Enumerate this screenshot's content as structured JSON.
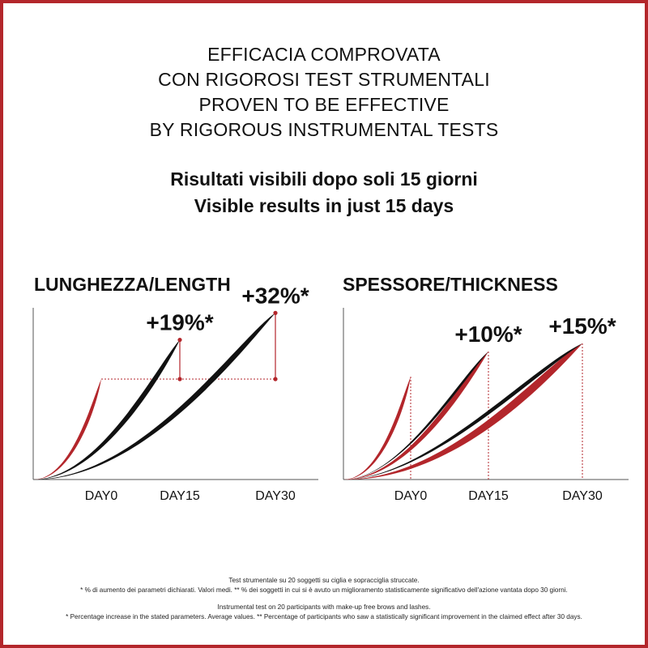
{
  "headline": {
    "line1": "EFFICACIA COMPROVATA",
    "line2": "CON RIGOROSI TEST STRUMENTALI",
    "line3": "PROVEN TO BE EFFECTIVE",
    "line4": "BY RIGOROUS INSTRUMENTAL TESTS"
  },
  "subheadline": {
    "line1": "Risultati visibili dopo soli 15 giorni",
    "line2": "Visible results in just 15 days"
  },
  "colors": {
    "red": "#b3262b",
    "black": "#111111",
    "frame": "#b3262b"
  },
  "chart_data": [
    {
      "type": "line",
      "title": "LUNGHEZZA/LENGTH",
      "categories": [
        "DAY0",
        "DAY15",
        "DAY30"
      ],
      "baseline_level": 1.0,
      "series": [
        {
          "color": "#b3262b",
          "end_day": "DAY0",
          "end_value": 1.0
        },
        {
          "color": "#111111",
          "end_day": "DAY15",
          "end_value": 1.19,
          "label": "+19%*"
        },
        {
          "color": "#111111",
          "end_day": "DAY30",
          "end_value": 1.32,
          "label": "+32%*"
        }
      ],
      "grid": false
    },
    {
      "type": "line",
      "title": "SPESSORE/THICKNESS",
      "categories": [
        "DAY0",
        "DAY15",
        "DAY30"
      ],
      "series": [
        {
          "color": "#b3262b",
          "end_day": "DAY0",
          "end_value": 1.0
        },
        {
          "color": "#b3262b",
          "end_day": "DAY15",
          "end_value": 1.1,
          "label": "+10%*"
        },
        {
          "color": "#111111",
          "end_day": "DAY30",
          "end_value": 1.15,
          "label": "+15%*"
        }
      ],
      "grid": false
    }
  ],
  "footnotes": {
    "it_line1": "Test strumentale su 20 soggetti su ciglia e sopracciglia struccate.",
    "it_line2": "* % di aumento dei parametri dichiarati. Valori medi. ** % dei soggetti in cui si è avuto un miglioramento statisticamente significativo dell'azione vantata dopo 30 giorni.",
    "en_line1": "Instrumental test on 20 participants with make-up free brows and lashes.",
    "en_line2": "* Percentage increase in the stated parameters. Average values. ** Percentage of participants who saw a statistically significant improvement in the claimed effect after 30 days."
  }
}
